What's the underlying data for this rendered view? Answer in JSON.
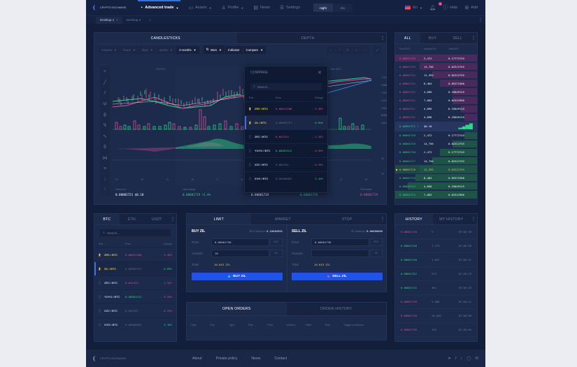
{
  "nav": {
    "logo": "CRYPTO EXCHANGE",
    "advanced_trade": "Advanced trade",
    "assets": "Assets",
    "profile": "Profile",
    "news": "News",
    "settings": "Settings",
    "theme_night": "night",
    "theme_day": "day",
    "lang": "En",
    "notif_count": "7",
    "help": "Help",
    "add": "Add"
  },
  "desktops": {
    "d1": "Desktop 1",
    "d2": "Desktop 2",
    "add": "+"
  },
  "chart": {
    "tabs": [
      "CANDLESTICKS",
      "DEPTH"
    ],
    "intervals": [
      "minutes",
      "hours",
      "days",
      "weeks",
      "3 months"
    ],
    "type": "Bars",
    "indicator": "Indicator",
    "compare": "Compare",
    "controls": [
      "←",
      "−",
      "C",
      "+",
      "→"
    ],
    "months": [
      "Oct 2017",
      "Nov 2017",
      "Dec 2017"
    ],
    "y_ticks": [
      "7,200",
      "7,100",
      "7,000",
      "6,900",
      "6,800",
      "6,700",
      "6,600"
    ],
    "x_ticks": [
      "10",
      "16",
      "23",
      "30",
      "6",
      "13",
      "20",
      "27",
      "1",
      "8",
      "15"
    ],
    "osc_ticks": [
      "50",
      "30"
    ],
    "last_price_label": "Last price",
    "last_price": "0.00001721 $0.10",
    "last_change_label": "Last change",
    "last_change": "0.00001719 +1.8%",
    "mid_value": "0.00001719",
    "mid_value2": "0.00001719",
    "low_label": "24h lowest",
    "low_value": "0.00001719"
  },
  "compare": {
    "title": "COMPARE",
    "search_placeholder": "Search...",
    "headers": {
      "pair": "Pair ↓",
      "price": "Price",
      "change": "Change"
    }
  },
  "pairs_list": [
    {
      "pair": "ZRX / BTC",
      "price": "0.00017180",
      "change": "- 3.46%",
      "pc": "pink",
      "cc": "pink",
      "fav": true
    },
    {
      "pair": "ZIL / BTC",
      "price": "0.00001751",
      "change": "0.69%",
      "pc": "dim",
      "cc": "green",
      "fav": true,
      "sel": true
    },
    {
      "pair": "ZEC / BTC",
      "price": "0.041313",
      "change": "- 1.34%",
      "pc": "pink",
      "cc": "pink"
    },
    {
      "pair": "YOYO / BTC",
      "price": "0.00001512",
      "change": "- 0.59%",
      "pc": "green",
      "cc": "pink"
    },
    {
      "pair": "XZC / BTC",
      "price": "0.004332",
      "change": "- 0.25%",
      "pc": "dim",
      "cc": "pink"
    },
    {
      "pair": "XVG / BTC",
      "price": "0.00000662",
      "change": "3.10%",
      "pc": "dim",
      "cc": "green"
    }
  ],
  "orderbook": {
    "tabs": [
      "ALL",
      "BUY",
      "SELL"
    ],
    "headers": [
      "Price BTC",
      "Amount ZIL",
      "Total BTC"
    ],
    "asks": [
      [
        "0.00001726",
        "2,472",
        "0.17772745",
        100
      ],
      [
        "0.00001725",
        "14,756",
        "0.02312755",
        70
      ],
      [
        "0.00001724",
        "12,393",
        "0.02312755",
        55
      ],
      [
        "0.00001723",
        "8,464",
        "0.05372300",
        45
      ],
      [
        "0.00001722",
        "4,096",
        "0.25849125",
        30
      ],
      [
        "0.00001721",
        "7,683",
        "0.02522986",
        30
      ],
      [
        "0.00001721",
        "4,096",
        "0.25849125",
        20
      ],
      [
        "0.00001721",
        "4,096",
        "0.25849125",
        15
      ]
    ],
    "mid": {
      "price": "0.00001721 ↑",
      "usd": "$0.10"
    },
    "bids": [
      [
        "0.00001720",
        "2,472",
        "0.17772745",
        15
      ],
      [
        "0.00001719",
        "14,756",
        "0.02312755",
        30
      ],
      [
        "0.00001718",
        "2,472",
        "0.17772745",
        45
      ],
      [
        "0.00001717",
        "14,756",
        "0.02312755",
        55
      ],
      [
        "0.00001716",
        "12,393",
        "0.02312755",
        70
      ],
      [
        "0.00001715",
        "8,464",
        "0.05372300",
        75
      ],
      [
        "0.00001714",
        "4,096",
        "0.25849125",
        85
      ],
      [
        "0.00001713",
        "7,683",
        "0.02522986",
        100
      ]
    ]
  },
  "pairs_panel": {
    "tabs": [
      "BTC",
      "ETH",
      "USDT"
    ],
    "search_placeholder": "Search...",
    "headers": {
      "pair": "Pair ↓",
      "price": "Price",
      "change": "Change"
    }
  },
  "trade": {
    "tabs": [
      "LIMIT",
      "MARKET",
      "STOP"
    ],
    "buy": {
      "title": "BUY ZIL",
      "balance_label": "BTC Balance:",
      "balance": "0.24804501",
      "price_label": "Price",
      "price": "0.00001730",
      "price_unit": "BTC",
      "amount_label": "Amount",
      "amount": "10",
      "amount_unit": "ZIL",
      "total_label": "Total",
      "total": "10.043 ZIL",
      "button": "BUY ZIL"
    },
    "sell": {
      "title": "SELL ZIL",
      "balance_label": "ZIL Balance:",
      "balance": "0.00000000",
      "price_label": "Price",
      "price": "0.00001730",
      "price_unit": "BTC",
      "amount_label": "Amount",
      "amount": "",
      "amount_unit": "ZIL",
      "total_label": "Total",
      "total": "10.043 ZIL",
      "button": "SELL ZIL"
    }
  },
  "orders": {
    "tabs": [
      "OPEN ORDERS",
      "ORDER HISTORY"
    ],
    "headers": [
      "Date",
      "Pair",
      "Type",
      "Side",
      "Price",
      "Amount",
      "Filled",
      "Total",
      "Trigger conditions"
    ]
  },
  "history": {
    "tabs": [
      "HISTORY",
      "MY HISTORY"
    ],
    "rows": [
      [
        "0.00001740",
        "3",
        "07:06:38",
        "pink"
      ],
      [
        "0.00001740",
        "1,179",
        "07:06:36",
        "green"
      ],
      [
        "0.00001740",
        "1,047",
        "07:06:21",
        "green"
      ],
      [
        "0.00001742",
        "574",
        "07:06:19",
        "green"
      ],
      [
        "0.00001742",
        "461",
        "07:06:18",
        "green"
      ],
      [
        "0.00001739",
        "5,568",
        "07:06:11",
        "pink"
      ],
      [
        "0.00001739",
        "10,848",
        "07:06:08",
        "pink"
      ],
      [
        "0.00001739",
        "199",
        "07:06:05",
        "pink"
      ]
    ]
  },
  "footer": {
    "logo": "CRYPTO EXCHANGE",
    "links": [
      "About",
      "Private policy",
      "News",
      "Contact"
    ]
  }
}
